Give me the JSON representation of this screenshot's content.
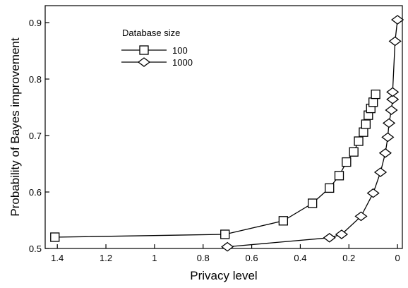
{
  "chart_data": {
    "type": "line",
    "xlabel": "Privacy level",
    "ylabel": "Probability of Bayes improvement",
    "xlim": [
      1.45,
      -0.02
    ],
    "x_reversed": true,
    "ylim": [
      0.5,
      0.93
    ],
    "xticks": [
      1.4,
      1.2,
      1,
      0.8,
      0.6,
      0.4,
      0.2,
      0
    ],
    "xtick_labels": [
      "1.4",
      "1.2",
      "1",
      "0.8",
      "0.6",
      "0.4",
      "0.2",
      "0"
    ],
    "yticks": [
      0.5,
      0.6,
      0.7,
      0.8,
      0.9
    ],
    "ytick_labels": [
      "0.5",
      "0.6",
      "0.7",
      "0.8",
      "0.9"
    ],
    "grid": false,
    "legend": {
      "title": "Database size",
      "placement": "top-left"
    },
    "series": [
      {
        "name": "100",
        "marker": "square",
        "points": [
          [
            1.41,
            0.52
          ],
          [
            0.71,
            0.525
          ],
          [
            0.47,
            0.549
          ],
          [
            0.35,
            0.58
          ],
          [
            0.28,
            0.607
          ],
          [
            0.24,
            0.629
          ],
          [
            0.21,
            0.653
          ],
          [
            0.18,
            0.671
          ],
          [
            0.16,
            0.69
          ],
          [
            0.14,
            0.706
          ],
          [
            0.13,
            0.72
          ],
          [
            0.12,
            0.736
          ],
          [
            0.11,
            0.748
          ],
          [
            0.1,
            0.759
          ],
          [
            0.09,
            0.773
          ]
        ]
      },
      {
        "name": "1000",
        "marker": "diamond",
        "points": [
          [
            0.7,
            0.503
          ],
          [
            0.28,
            0.519
          ],
          [
            0.23,
            0.525
          ],
          [
            0.15,
            0.557
          ],
          [
            0.1,
            0.598
          ],
          [
            0.07,
            0.635
          ],
          [
            0.05,
            0.669
          ],
          [
            0.04,
            0.697
          ],
          [
            0.035,
            0.722
          ],
          [
            0.025,
            0.745
          ],
          [
            0.02,
            0.764
          ],
          [
            0.02,
            0.777
          ],
          [
            0.01,
            0.867
          ],
          [
            0.0,
            0.905
          ]
        ]
      }
    ]
  }
}
